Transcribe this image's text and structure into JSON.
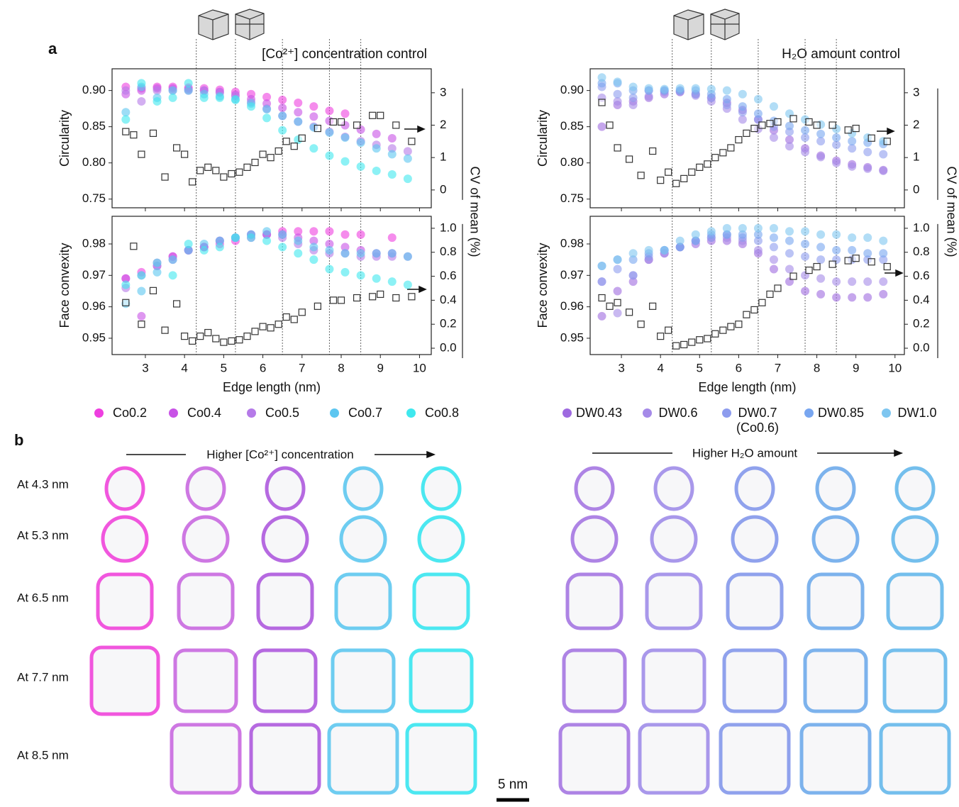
{
  "panel_labels": [
    "a",
    "b"
  ],
  "chart_data": [
    {
      "type": "scatter",
      "title": "[Co²⁺] concentration control",
      "xlabel": "Edge length (nm)",
      "y2label": "CV of mean (%)",
      "xlim": [
        2.15,
        10.3
      ],
      "xticks": [
        3,
        4,
        5,
        6,
        7,
        8,
        9,
        10
      ],
      "vlines": [
        4.3,
        5.3,
        6.5,
        7.7,
        8.5
      ],
      "legend": [
        {
          "name": "Co0.2",
          "color": "#ee3fe0"
        },
        {
          "name": "Co0.4",
          "color": "#c852e6"
        },
        {
          "name": "Co0.5",
          "color": "#b57ae8"
        },
        {
          "name": "Co0.7",
          "color": "#5cc6f0"
        },
        {
          "name": "Co0.8",
          "color": "#3fe8ee"
        }
      ],
      "x": [
        2.5,
        2.9,
        3.3,
        3.7,
        4.1,
        4.5,
        4.9,
        5.3,
        5.7,
        6.1,
        6.5,
        6.9,
        7.3,
        7.7,
        8.1,
        8.5,
        8.9,
        9.3,
        9.7
      ],
      "cv_x": [
        2.5,
        2.7,
        2.9,
        3.2,
        3.5,
        3.8,
        4.0,
        4.2,
        4.4,
        4.6,
        4.8,
        5.0,
        5.2,
        5.4,
        5.6,
        5.8,
        6.0,
        6.2,
        6.4,
        6.6,
        6.8,
        7.0,
        7.4,
        7.8,
        8.0,
        8.4,
        8.8,
        9.0,
        9.4,
        9.8
      ],
      "panels": [
        {
          "ylabel": "Circularity",
          "ylim": [
            0.738,
            0.93
          ],
          "yticks": [
            0.75,
            {
              "value": 0.8,
              "label": "0.80"
            },
            0.85,
            {
              "value": 0.9,
              "label": "0.90"
            }
          ],
          "y2lim": [
            -0.55,
            3.74
          ],
          "y2ticks": [
            0,
            1,
            2,
            3
          ],
          "series": [
            [
              0.905,
              0.903,
              0.905,
              0.905,
              0.904,
              0.903,
              0.901,
              0.898,
              0.895,
              0.891,
              0.887,
              0.883,
              0.878,
              0.872,
              0.868,
              null,
              null,
              null,
              null
            ],
            [
              0.895,
              0.9,
              0.903,
              0.903,
              0.902,
              0.9,
              0.898,
              0.894,
              0.888,
              0.882,
              0.876,
              0.87,
              0.864,
              0.858,
              0.852,
              0.846,
              0.84,
              0.834,
              null
            ],
            [
              0.9,
              0.885,
              0.9,
              0.9,
              0.9,
              0.9,
              0.897,
              0.892,
              0.884,
              0.875,
              0.865,
              0.857,
              0.85,
              0.843,
              0.836,
              0.83,
              0.825,
              0.82,
              0.816
            ],
            [
              0.87,
              0.905,
              0.89,
              0.9,
              0.9,
              0.895,
              0.892,
              0.888,
              0.882,
              0.874,
              0.865,
              0.857,
              0.849,
              0.842,
              0.835,
              0.828,
              0.82,
              0.812,
              0.806
            ],
            [
              0.86,
              0.91,
              0.885,
              0.89,
              0.91,
              0.89,
              0.89,
              0.887,
              0.878,
              0.862,
              0.845,
              0.832,
              0.82,
              0.81,
              0.802,
              0.795,
              0.789,
              0.784,
              0.778
            ]
          ],
          "cv": [
            1.8,
            1.7,
            1.1,
            1.75,
            0.4,
            1.3,
            1.1,
            0.25,
            0.6,
            0.7,
            0.6,
            0.4,
            0.5,
            0.55,
            0.7,
            0.85,
            1.1,
            1.0,
            1.2,
            1.5,
            1.35,
            1.6,
            1.9,
            2.1,
            2.1,
            2.0,
            2.3,
            2.3,
            2.0,
            1.5
          ]
        },
        {
          "ylabel": "Face convexity",
          "ylim": [
            0.9448,
            0.9888
          ],
          "yticks": [
            0.95,
            0.96,
            0.97,
            0.98
          ],
          "y2lim": [
            -0.053,
            1.1
          ],
          "y2ticks": [
            {
              "value": 0,
              "label": "0.0"
            },
            0.2,
            0.4,
            0.6,
            0.8,
            {
              "value": 1,
              "label": "1.0"
            }
          ],
          "series": [
            [
              0.969,
              0.971,
              0.974,
              0.976,
              0.978,
              0.979,
              0.98,
              0.981,
              0.982,
              0.983,
              0.984,
              0.984,
              0.984,
              0.984,
              0.983,
              0.983,
              null,
              0.982,
              null
            ],
            [
              0.969,
              0.957,
              0.973,
              0.976,
              0.978,
              0.979,
              0.981,
              0.982,
              0.983,
              0.983,
              0.983,
              0.982,
              0.981,
              0.98,
              0.979,
              0.978,
              0.977,
              0.977,
              null
            ],
            [
              0.966,
              0.97,
              0.973,
              0.975,
              0.978,
              0.979,
              0.981,
              0.982,
              0.983,
              0.983,
              0.982,
              0.98,
              0.978,
              0.977,
              0.977,
              0.976,
              0.976,
              0.976,
              0.976
            ],
            [
              0.961,
              0.965,
              0.971,
              0.975,
              0.978,
              0.98,
              0.981,
              0.982,
              0.983,
              0.984,
              0.983,
              0.981,
              0.979,
              0.978,
              0.977,
              0.977,
              0.977,
              0.977,
              0.976
            ],
            [
              0.967,
              0.97,
              0.974,
              0.97,
              0.98,
              0.978,
              0.979,
              0.982,
              0.982,
              0.981,
              0.979,
              0.977,
              0.975,
              0.972,
              0.971,
              0.97,
              0.969,
              0.968,
              0.967
            ]
          ],
          "cv": [
            0.38,
            0.85,
            0.2,
            0.48,
            0.15,
            0.37,
            0.1,
            0.06,
            0.1,
            0.13,
            0.08,
            0.05,
            0.06,
            0.07,
            0.1,
            0.14,
            0.18,
            0.17,
            0.2,
            0.26,
            0.24,
            0.3,
            0.35,
            0.4,
            0.4,
            0.42,
            0.43,
            0.45,
            0.42,
            0.43
          ]
        }
      ]
    },
    {
      "type": "scatter",
      "title": "H₂O amount control",
      "xlabel": "Edge length (nm)",
      "y2label": "CV of mean (%)",
      "xlim": [
        2.2,
        10.24
      ],
      "xticks": [
        3,
        4,
        5,
        6,
        7,
        8,
        9,
        10
      ],
      "vlines": [
        4.3,
        5.3,
        6.5,
        7.7,
        8.5
      ],
      "legend": [
        {
          "name": "DW0.43",
          "color": "#9e6ae0"
        },
        {
          "name": "DW0.6",
          "color": "#a58ae8"
        },
        {
          "name": "DW0.7 (Co0.6)",
          "color": "#8d9cee"
        },
        {
          "name": "DW0.85",
          "color": "#78a6f0"
        },
        {
          "name": "DW1.0",
          "color": "#7ec6f0"
        }
      ],
      "x": [
        2.5,
        2.9,
        3.3,
        3.7,
        4.1,
        4.5,
        4.9,
        5.3,
        5.7,
        6.1,
        6.5,
        6.9,
        7.3,
        7.7,
        8.1,
        8.5,
        8.9,
        9.3,
        9.7
      ],
      "cv_x": [
        2.5,
        2.7,
        2.9,
        3.2,
        3.5,
        3.8,
        4.0,
        4.2,
        4.4,
        4.6,
        4.8,
        5.0,
        5.2,
        5.4,
        5.6,
        5.8,
        6.0,
        6.2,
        6.4,
        6.6,
        6.8,
        7.0,
        7.4,
        7.8,
        8.0,
        8.4,
        8.8,
        9.0,
        9.4,
        9.8
      ],
      "panels": [
        {
          "ylabel": "Circularity",
          "ylim": [
            0.738,
            0.93
          ],
          "yticks": [
            0.75,
            {
              "value": 0.8,
              "label": "0.80"
            },
            0.85,
            {
              "value": 0.9,
              "label": "0.90"
            }
          ],
          "y2lim": [
            -0.55,
            3.74
          ],
          "y2ticks": [
            0,
            1,
            2,
            3
          ],
          "series": [
            [
              0.85,
              0.88,
              0.885,
              0.89,
              0.895,
              0.898,
              0.895,
              0.89,
              0.883,
              0.873,
              0.86,
              0.845,
              0.832,
              0.82,
              0.81,
              0.803,
              0.798,
              0.794,
              0.79
            ],
            [
              0.89,
              0.885,
              0.88,
              0.892,
              0.898,
              0.898,
              0.893,
              0.885,
              0.875,
              0.86,
              0.847,
              0.835,
              0.823,
              0.815,
              0.808,
              0.8,
              0.795,
              0.792,
              0.789
            ],
            [
              0.905,
              0.895,
              0.89,
              0.9,
              0.9,
              0.9,
              0.895,
              0.89,
              0.88,
              0.87,
              0.86,
              0.85,
              0.843,
              0.835,
              0.83,
              0.825,
              0.82,
              0.815,
              0.812
            ],
            [
              0.91,
              0.91,
              0.9,
              0.9,
              0.9,
              0.9,
              0.9,
              0.895,
              0.888,
              0.878,
              0.868,
              0.858,
              0.851,
              0.845,
              0.84,
              0.835,
              0.83,
              0.828,
              0.826
            ],
            [
              0.918,
              0.912,
              0.905,
              0.903,
              0.902,
              0.903,
              0.903,
              0.902,
              0.9,
              0.895,
              0.888,
              0.878,
              0.868,
              0.86,
              0.853,
              0.847,
              0.841,
              0.835,
              0.83
            ]
          ],
          "cv": [
            2.7,
            2.0,
            1.3,
            0.95,
            0.45,
            1.2,
            0.3,
            0.55,
            0.2,
            0.35,
            0.55,
            0.7,
            0.8,
            1.0,
            1.15,
            1.3,
            1.55,
            1.75,
            1.9,
            2.0,
            2.05,
            2.1,
            2.2,
            2.1,
            2.0,
            2.0,
            1.85,
            1.9,
            1.6,
            1.5
          ]
        },
        {
          "ylabel": "Face convexity",
          "ylim": [
            0.9448,
            0.9888
          ],
          "yticks": [
            0.95,
            0.96,
            0.97,
            0.98
          ],
          "y2lim": [
            -0.053,
            1.1
          ],
          "y2ticks": [
            {
              "value": 0,
              "label": "0.0"
            },
            0.2,
            0.4,
            0.6,
            0.8,
            {
              "value": 1,
              "label": "1.0"
            }
          ],
          "series": [
            [
              0.957,
              0.965,
              0.968,
              0.975,
              0.977,
              0.979,
              0.98,
              0.981,
              0.981,
              0.98,
              0.977,
              0.972,
              0.968,
              0.965,
              0.964,
              0.963,
              0.963,
              0.963,
              0.964
            ],
            [
              0.968,
              0.958,
              0.97,
              0.975,
              0.977,
              0.979,
              0.981,
              0.982,
              0.982,
              0.981,
              0.978,
              0.975,
              0.972,
              0.97,
              0.969,
              0.968,
              0.968,
              0.968,
              0.968
            ],
            [
              0.968,
              0.972,
              0.97,
              0.976,
              0.978,
              0.979,
              0.981,
              0.982,
              0.983,
              0.982,
              0.981,
              0.979,
              0.977,
              0.976,
              0.975,
              0.975,
              0.975,
              0.975,
              0.975
            ],
            [
              0.973,
              0.975,
              0.975,
              0.977,
              0.978,
              0.979,
              0.981,
              0.983,
              0.983,
              0.983,
              0.983,
              0.982,
              0.981,
              0.98,
              0.979,
              0.978,
              0.978,
              0.977,
              0.977
            ],
            [
              0.973,
              0.975,
              0.977,
              0.978,
              0.978,
              0.981,
              0.983,
              0.984,
              0.985,
              0.985,
              0.985,
              0.985,
              0.984,
              0.984,
              0.983,
              0.983,
              0.982,
              0.982,
              0.981
            ]
          ],
          "cv": [
            0.42,
            0.35,
            0.38,
            0.3,
            0.2,
            0.35,
            0.1,
            0.15,
            0.02,
            0.03,
            0.05,
            0.07,
            0.08,
            0.12,
            0.15,
            0.18,
            0.2,
            0.28,
            0.32,
            0.38,
            0.45,
            0.5,
            0.6,
            0.65,
            0.68,
            0.7,
            0.73,
            0.75,
            0.72,
            0.68
          ]
        }
      ]
    }
  ],
  "panel_b": {
    "headers": [
      "Higher [Co²⁺] concentration",
      "Higher H₂O amount"
    ],
    "rows": [
      "At 4.3 nm",
      "At 5.3 nm",
      "At 6.5 nm",
      "At 7.7 nm",
      "At 8.5 nm"
    ],
    "scale_bar": "5 nm"
  }
}
